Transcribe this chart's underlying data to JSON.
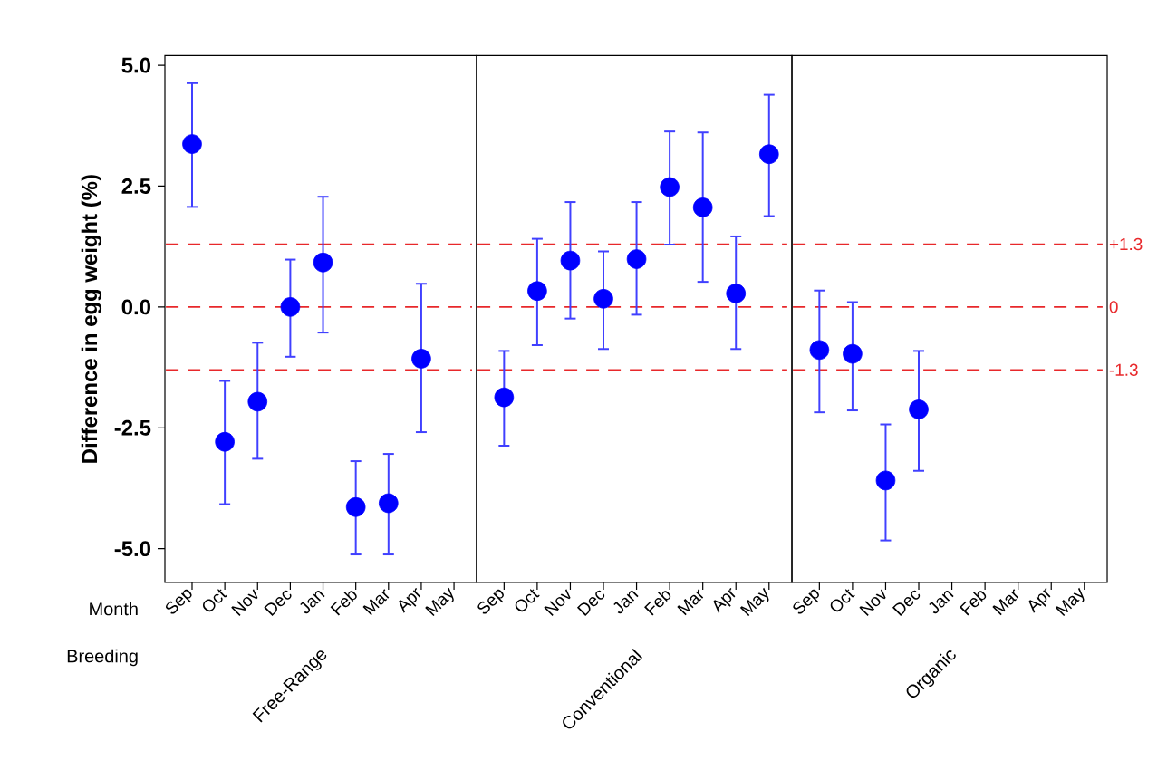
{
  "chart_data": [
    {
      "type": "scatter",
      "ylabel": "Difference in egg weight (%)",
      "xlabel": "Free-Range",
      "marker": "circle",
      "color": "#0000ff",
      "categories": [
        "Sep",
        "Oct",
        "Nov",
        "Dec",
        "Jan",
        "Feb",
        "Mar",
        "Apr",
        "May"
      ],
      "values": [
        3.37,
        -2.79,
        -1.96,
        0.0,
        0.92,
        -4.14,
        -4.06,
        -1.07,
        null
      ],
      "errors": [
        [
          2.07,
          4.63
        ],
        [
          -4.08,
          -1.53
        ],
        [
          -3.14,
          -0.74
        ],
        [
          -1.03,
          0.98
        ],
        [
          -0.53,
          2.28
        ],
        [
          -5.12,
          -3.19
        ],
        [
          -5.12,
          -3.04
        ],
        [
          -2.59,
          0.48
        ],
        null
      ],
      "ylim": [
        -5.7,
        5.2
      ],
      "yticks": [
        {
          "value": -5,
          "label": "-5.0"
        },
        {
          "value": -2.5,
          "label": "-2.5"
        },
        {
          "value": 0,
          "label": "0.0"
        },
        {
          "value": 2.5,
          "label": "2.5"
        },
        {
          "value": 5,
          "label": "5.0"
        }
      ],
      "ref_lines": [
        {
          "axis": "y",
          "value": 1.3,
          "color": "#e8282b",
          "line_style": "dashed"
        },
        {
          "axis": "y",
          "value": 0,
          "color": "#e8282b",
          "line_style": "dashed"
        },
        {
          "axis": "y",
          "value": -1.3,
          "color": "#e8282b",
          "line_style": "dashed"
        }
      ],
      "annotations": [
        "Month",
        "Breeding"
      ]
    },
    {
      "type": "scatter",
      "xlabel": "Conventional",
      "marker": "circle",
      "color": "#0000ff",
      "tick_labels": "x",
      "categories": [
        "Sep",
        "Oct",
        "Nov",
        "Dec",
        "Jan",
        "Feb",
        "Mar",
        "Apr",
        "May"
      ],
      "values": [
        -1.87,
        0.33,
        0.96,
        0.17,
        0.99,
        2.48,
        2.06,
        0.28,
        3.16
      ],
      "errors": [
        [
          -2.87,
          -0.91
        ],
        [
          -0.79,
          1.41
        ],
        [
          -0.24,
          2.17
        ],
        [
          -0.87,
          1.15
        ],
        [
          -0.16,
          2.17
        ],
        [
          1.29,
          3.63
        ],
        [
          0.52,
          3.61
        ],
        [
          -0.87,
          1.46
        ],
        [
          1.88,
          4.39
        ]
      ],
      "ylim": [
        -5.7,
        5.2
      ],
      "ref_lines": [
        {
          "axis": "y",
          "value": 1.3,
          "color": "#e8282b",
          "line_style": "dashed"
        },
        {
          "axis": "y",
          "value": 0,
          "color": "#e8282b",
          "line_style": "dashed"
        },
        {
          "axis": "y",
          "value": -1.3,
          "color": "#e8282b",
          "line_style": "dashed"
        }
      ]
    },
    {
      "type": "scatter",
      "xlabel": "Organic",
      "marker": "circle",
      "color": "#0000ff",
      "tick_labels": "x",
      "categories": [
        "Sep",
        "Oct",
        "Nov",
        "Dec",
        "Jan",
        "Feb",
        "Mar",
        "Apr",
        "May"
      ],
      "values": [
        -0.89,
        -0.97,
        -3.59,
        -2.12,
        null,
        null,
        null,
        null,
        null
      ],
      "errors": [
        [
          -2.18,
          0.34
        ],
        [
          -2.14,
          0.1
        ],
        [
          -4.83,
          -2.43
        ],
        [
          -3.39,
          -0.91
        ],
        null,
        null,
        null,
        null,
        null
      ],
      "ylim": [
        -5.7,
        5.2
      ],
      "ref_lines": [
        {
          "axis": "y",
          "value": 1.3,
          "label": "+1.3",
          "color": "#e8282b",
          "line_style": "dashed"
        },
        {
          "axis": "y",
          "value": 0,
          "label": "0",
          "color": "#e8282b",
          "line_style": "dashed"
        },
        {
          "axis": "y",
          "value": -1.3,
          "label": "-1.3",
          "color": "#e8282b",
          "line_style": "dashed"
        }
      ]
    }
  ]
}
